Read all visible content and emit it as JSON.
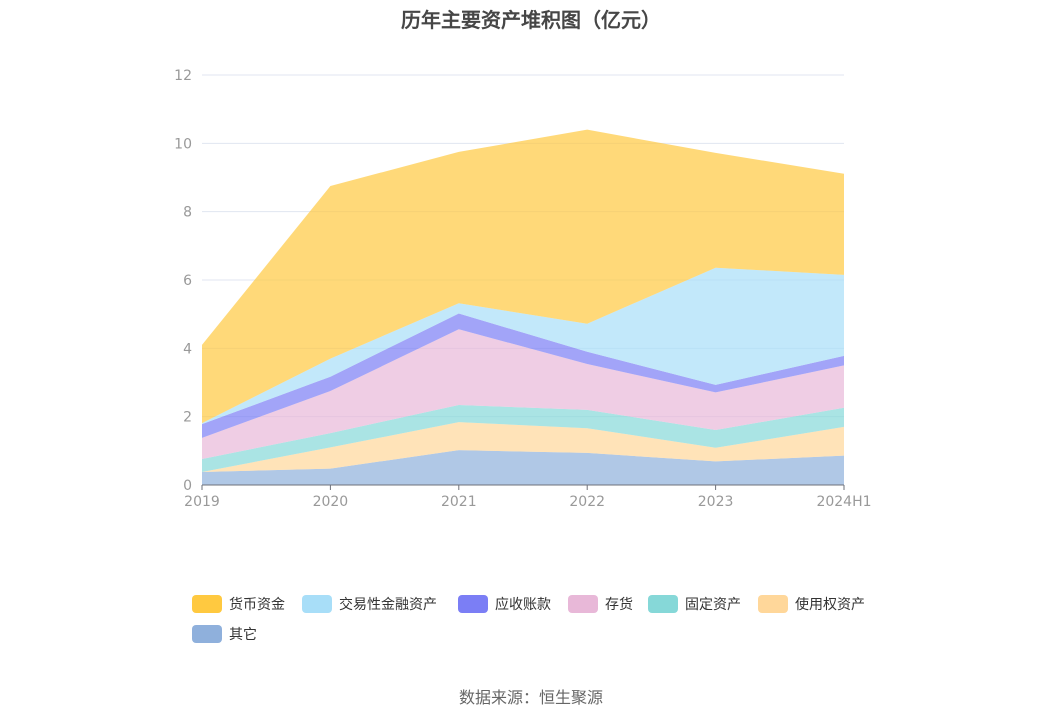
{
  "chart_data": {
    "type": "area",
    "stacked": true,
    "title": "历年主要资产堆积图（亿元）",
    "x": [
      "2019",
      "2020",
      "2021",
      "2022",
      "2023",
      "2024H1"
    ],
    "y_ticks": [
      "0",
      "2",
      "4",
      "6",
      "8",
      "10",
      "12"
    ],
    "ylim": [
      0,
      12
    ],
    "grid": true,
    "legend_position": "bottom",
    "series": [
      {
        "name": "其它",
        "color": "#8fb0dc",
        "values": [
          0.38,
          0.48,
          1.02,
          0.94,
          0.69,
          0.86
        ]
      },
      {
        "name": "使用权资产",
        "color": "#ffd79a",
        "values": [
          0.0,
          0.62,
          0.82,
          0.72,
          0.4,
          0.84
        ]
      },
      {
        "name": "固定资产",
        "color": "#86d8d8",
        "values": [
          0.38,
          0.42,
          0.5,
          0.54,
          0.52,
          0.56
        ]
      },
      {
        "name": "存货",
        "color": "#e8b8d8",
        "values": [
          0.62,
          1.23,
          2.22,
          1.34,
          1.1,
          1.24
        ]
      },
      {
        "name": "应收账款",
        "color": "#7b7ef5",
        "values": [
          0.4,
          0.42,
          0.46,
          0.36,
          0.22,
          0.28
        ]
      },
      {
        "name": "交易性金融资产",
        "color": "#a8def8",
        "values": [
          0.03,
          0.53,
          0.3,
          0.82,
          3.43,
          2.37
        ]
      },
      {
        "name": "货币资金",
        "color": "#ffc940",
        "values": [
          2.29,
          5.05,
          4.43,
          5.68,
          3.36,
          2.96
        ]
      }
    ]
  },
  "legend": [
    {
      "name": "货币资金",
      "color": "#ffc940"
    },
    {
      "name": "交易性金融资产",
      "color": "#a8def8"
    },
    {
      "name": "应收账款",
      "color": "#7b7ef5"
    },
    {
      "name": "存货",
      "color": "#e8b8d8"
    },
    {
      "name": "固定资产",
      "color": "#86d8d8"
    },
    {
      "name": "使用权资产",
      "color": "#ffd79a"
    },
    {
      "name": "其它",
      "color": "#8fb0dc"
    }
  ],
  "source": "数据来源：恒生聚源"
}
